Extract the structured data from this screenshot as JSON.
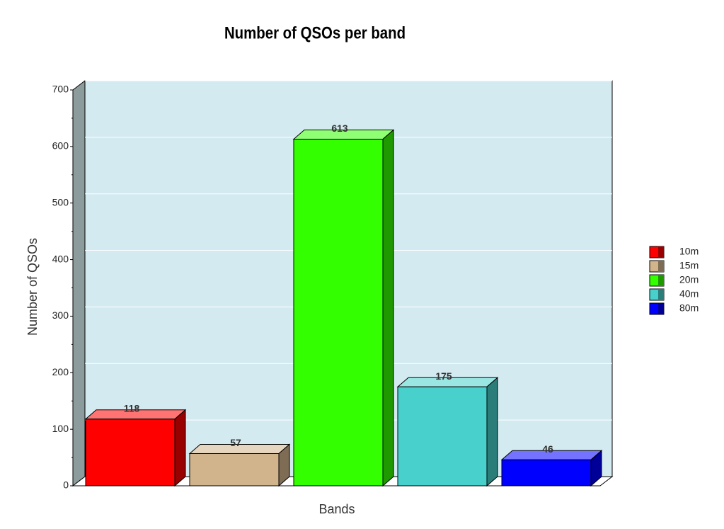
{
  "chart_data": {
    "type": "bar3d",
    "title": "Number of QSOs per band",
    "x_label": "Bands",
    "y_label": "Number of QSOs",
    "categories": [
      null
    ],
    "series": [
      {
        "name": "10m",
        "color": "#ff0000",
        "values": [
          118
        ]
      },
      {
        "name": "15m",
        "color": "#d2b48c",
        "values": [
          57
        ]
      },
      {
        "name": "20m",
        "color": "#33ff00",
        "values": [
          613
        ]
      },
      {
        "name": "40m",
        "color": "#48d1cc",
        "values": [
          175
        ]
      },
      {
        "name": "80m",
        "color": "#0000ff",
        "values": [
          46
        ]
      }
    ],
    "ylim": [
      0,
      700
    ],
    "yticks": [
      0,
      100,
      200,
      300,
      400,
      500,
      600,
      700
    ],
    "grid": true,
    "legend": "right"
  }
}
